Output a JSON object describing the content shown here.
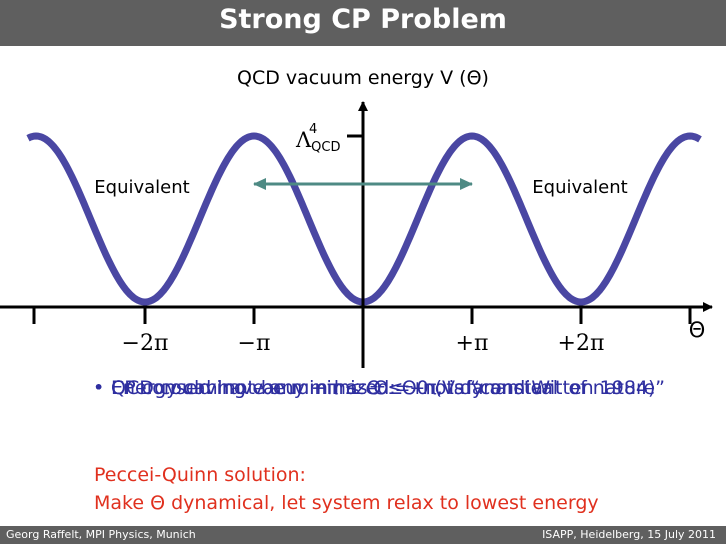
{
  "header": {
    "title": "Strong CP Problem"
  },
  "footer": {
    "left": "Georg Raffelt, MPI Physics, Munich",
    "right": "ISAPP, Heidelberg, 15 July 2011"
  },
  "diagram": {
    "y_axis_label": "QCD vacuum energy V (Θ)",
    "y_tick_label": "Λ",
    "y_tick_sup": "4",
    "y_tick_sub": "QCD",
    "x_axis_label": "Θ",
    "x_ticks": [
      "−2π",
      "−π",
      "+π",
      "+2π"
    ],
    "equivalent_left": "Equivalent",
    "equivalent_right": "Equivalent",
    "colors": {
      "curve": "#4a47a3",
      "arrow": "#4e8a84",
      "axis": "#000000"
    }
  },
  "bullets": [
    "CP conserving vacuum has Θ = 0 (Vafa and Witten 1984)",
    "QCD could have any −π ≤ Θ ≤ +π, is “constant of nature”",
    "Energy can not be minimized: Θ not dynamical"
  ],
  "solution": {
    "heading": "Peccei-Quinn solution:",
    "text": "Make Θ dynamical, let system relax to lowest energy"
  }
}
